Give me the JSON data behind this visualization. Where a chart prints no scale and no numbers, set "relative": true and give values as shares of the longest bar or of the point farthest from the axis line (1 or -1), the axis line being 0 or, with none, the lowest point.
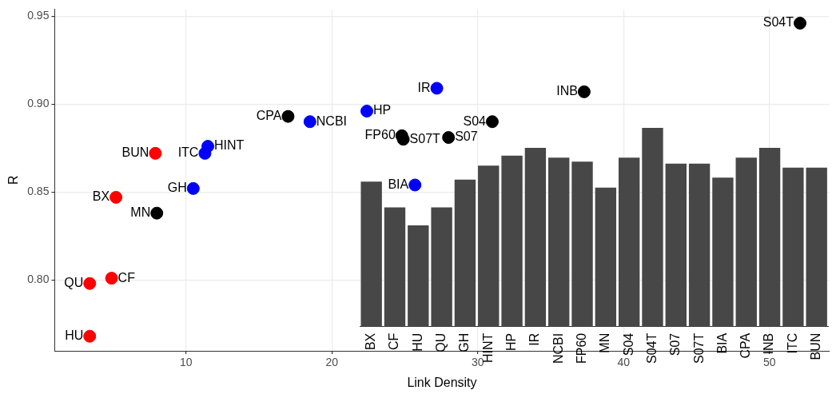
{
  "chart_data": [
    {
      "type": "scatter",
      "xlabel": "Link Density",
      "ylabel": "R",
      "x": [
        3.4,
        3.4,
        4.9,
        5.2,
        7.9,
        8.0,
        10.5,
        11.3,
        11.5,
        17.0,
        18.5,
        22.4,
        24.8,
        24.9,
        27.2,
        25.7,
        28.0,
        31.0,
        37.3,
        52.1
      ],
      "values": [
        0.768,
        0.798,
        0.801,
        0.847,
        0.872,
        0.838,
        0.852,
        0.872,
        0.876,
        0.893,
        0.89,
        0.896,
        0.882,
        0.88,
        0.909,
        0.854,
        0.881,
        0.89,
        0.907,
        0.946
      ],
      "colors": [
        "#ff0000",
        "#ff0000",
        "#ff0000",
        "#ff0000",
        "#ff0000",
        "#000000",
        "#0000ff",
        "#0000ff",
        "#0000ff",
        "#000000",
        "#0000ff",
        "#0000ff",
        "#000000",
        "#000000",
        "#0000ff",
        "#0000ff",
        "#000000",
        "#000000",
        "#000000",
        "#000000"
      ],
      "annotations": [
        {
          "text": "HU",
          "x": 3.4,
          "y": 0.768
        },
        {
          "text": "QU",
          "x": 3.4,
          "y": 0.798
        },
        {
          "text": "CF",
          "x": 4.9,
          "y": 0.801
        },
        {
          "text": "BX",
          "x": 5.2,
          "y": 0.847
        },
        {
          "text": "BUN",
          "x": 7.9,
          "y": 0.872
        },
        {
          "text": "MN",
          "x": 8.0,
          "y": 0.838
        },
        {
          "text": "GH",
          "x": 10.5,
          "y": 0.852
        },
        {
          "text": "ITC",
          "x": 11.3,
          "y": 0.872
        },
        {
          "text": "HINT",
          "x": 11.5,
          "y": 0.876
        },
        {
          "text": "CPA",
          "x": 17.0,
          "y": 0.893
        },
        {
          "text": "NCBI",
          "x": 18.5,
          "y": 0.89
        },
        {
          "text": "HP",
          "x": 22.4,
          "y": 0.896
        },
        {
          "text": "FP60",
          "x": 24.8,
          "y": 0.882
        },
        {
          "text": "S07T",
          "x": 24.9,
          "y": 0.88
        },
        {
          "text": "IR",
          "x": 27.2,
          "y": 0.909
        },
        {
          "text": "BIA",
          "x": 25.7,
          "y": 0.854
        },
        {
          "text": "S07",
          "x": 28.0,
          "y": 0.881
        },
        {
          "text": "S04",
          "x": 31.0,
          "y": 0.89
        },
        {
          "text": "INB",
          "x": 37.3,
          "y": 0.907
        },
        {
          "text": "S04T",
          "x": 52.1,
          "y": 0.946
        }
      ],
      "xlim": [
        1.0,
        54.1
      ],
      "ylim": [
        0.7597,
        0.954
      ],
      "xticks": [
        10,
        20,
        30,
        40,
        50
      ],
      "yticks": [
        {
          "value": 0.8,
          "label": "0.80"
        },
        {
          "value": 0.85,
          "label": "0.85"
        },
        {
          "value": 0.9,
          "label": "0.90"
        },
        {
          "value": 0.95,
          "label": "0.95"
        }
      ],
      "grid": true,
      "legend": false,
      "marker": "circle"
    },
    {
      "type": "bar",
      "relative": true,
      "categories": [
        "BX",
        "CF",
        "HU",
        "QU",
        "GH",
        "HINT",
        "HP",
        "IR",
        "NCBI",
        "FP60",
        "MN",
        "S04",
        "S04T",
        "S07",
        "S07T",
        "BIA",
        "CPA",
        "INB",
        "ITC",
        "BUN"
      ],
      "values": [
        0.73,
        0.6,
        0.51,
        0.6,
        0.74,
        0.81,
        0.86,
        0.9,
        0.85,
        0.83,
        0.7,
        0.85,
        1,
        0.82,
        0.82,
        0.75,
        0.85,
        0.9,
        0.8,
        0.8
      ],
      "color": "#474747",
      "grid": false,
      "legend": false
    }
  ]
}
